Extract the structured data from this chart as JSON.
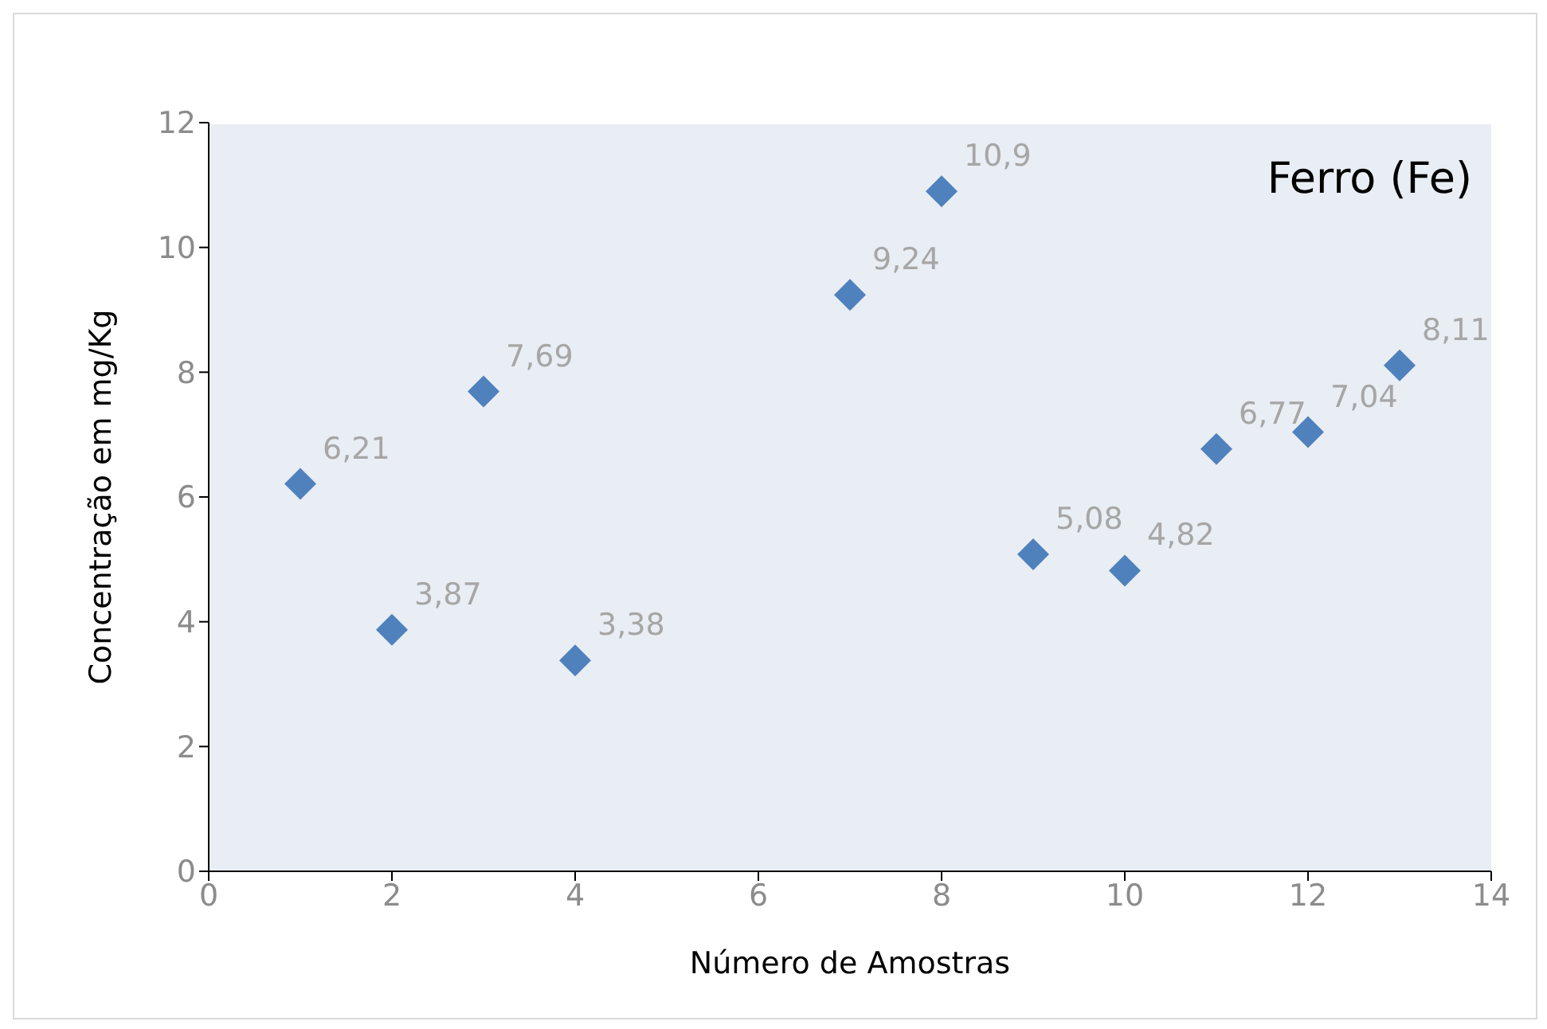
{
  "chart_data": {
    "type": "scatter",
    "title": "Ferro (Fe)",
    "xlabel": "Número de Amostras",
    "ylabel": "Concentração em mg/Kg",
    "x": [
      1,
      2,
      3,
      4,
      7,
      8,
      9,
      10,
      11,
      12,
      13
    ],
    "values": [
      6.21,
      3.87,
      7.69,
      3.38,
      9.24,
      10.9,
      5.08,
      4.82,
      6.77,
      7.04,
      8.11
    ],
    "value_labels": [
      "6,21",
      "3,87",
      "7,69",
      "3,38",
      "9,24",
      "10,9",
      "5,08",
      "4,82",
      "6,77",
      "7,04",
      "8,11"
    ],
    "color": "#4f81bd",
    "marker": "diamond",
    "xlim": [
      0,
      14
    ],
    "xticks": [
      0,
      2,
      4,
      6,
      8,
      10,
      12,
      14
    ],
    "ylim": [
      0,
      12
    ],
    "yticks": [
      0,
      2,
      4,
      6,
      8,
      10,
      12
    ],
    "grid": false,
    "legend": false
  }
}
